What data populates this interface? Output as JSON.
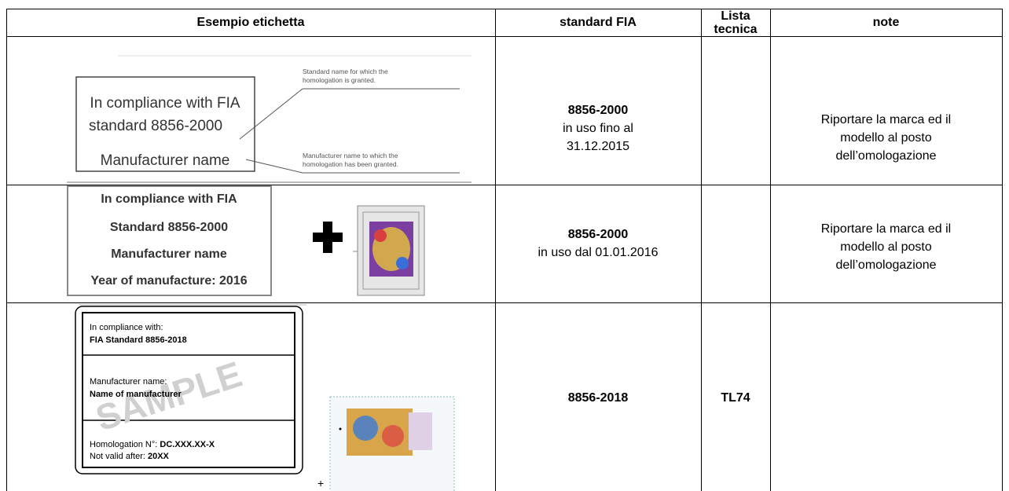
{
  "table": {
    "headers": [
      "Esempio etichetta",
      "standard FIA",
      "Lista tecnica",
      "note"
    ],
    "rows": [
      {
        "label": {
          "lines": [
            "In compliance with FIA",
            "standard 8856-2000",
            "Manufacturer name"
          ],
          "callouts": [
            "Standard name for which the",
            "homologation is granted.",
            "Manufacturer name to which the",
            "homologation has been granted."
          ]
        },
        "standard": "8856-2000",
        "standard_note": [
          "in uso fino al",
          "31.12.2015"
        ],
        "note": [
          "Riportare la marca ed il",
          "modello al posto",
          "dell’omologazione"
        ]
      },
      {
        "label": {
          "lines": [
            "In compliance with FIA",
            "Standard 8856-2000",
            "Manufacturer name",
            "Year of manufacture: 2016"
          ]
        },
        "standard": "8856-2000",
        "standard_note": [
          "in uso dal 01.01.2016"
        ],
        "note": [
          "Riportare la marca ed il",
          "modello al posto",
          "dell’omologazione"
        ]
      },
      {
        "label": {
          "lines": [
            "In compliance with:",
            "FIA Standard 8856-2018",
            "Manufacturer name:",
            "Name of manufacturer",
            "Homologation N°:",
            "DC.XXX.XX-X",
            "Not valid after:",
            "20XX"
          ],
          "watermark": "SAMPLE",
          "plus": "+"
        },
        "standard": "8856-2018",
        "list": "TL74"
      }
    ]
  }
}
